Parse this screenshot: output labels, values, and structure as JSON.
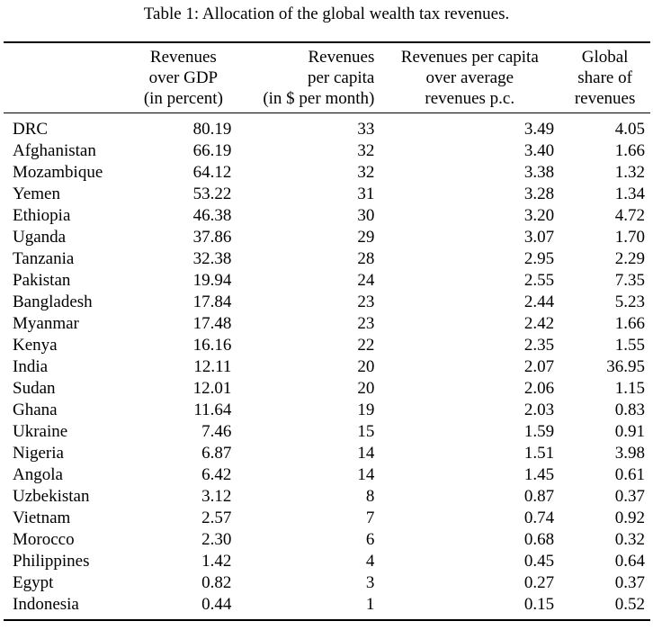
{
  "caption": "Table 1: Allocation of the global wealth tax revenues.",
  "headers": [
    "",
    "Revenues\nover GDP\n(in percent)",
    "Revenues\nper capita\n(in $ per month)",
    "Revenues per capita\nover average\nrevenues p.c.",
    "Global\nshare of\nrevenues"
  ],
  "rows": [
    [
      "DRC",
      "80.19",
      "33",
      "3.49",
      "4.05"
    ],
    [
      "Afghanistan",
      "66.19",
      "32",
      "3.40",
      "1.66"
    ],
    [
      "Mozambique",
      "64.12",
      "32",
      "3.38",
      "1.32"
    ],
    [
      "Yemen",
      "53.22",
      "31",
      "3.28",
      "1.34"
    ],
    [
      "Ethiopia",
      "46.38",
      "30",
      "3.20",
      "4.72"
    ],
    [
      "Uganda",
      "37.86",
      "29",
      "3.07",
      "1.70"
    ],
    [
      "Tanzania",
      "32.38",
      "28",
      "2.95",
      "2.29"
    ],
    [
      "Pakistan",
      "19.94",
      "24",
      "2.55",
      "7.35"
    ],
    [
      "Bangladesh",
      "17.84",
      "23",
      "2.44",
      "5.23"
    ],
    [
      "Myanmar",
      "17.48",
      "23",
      "2.42",
      "1.66"
    ],
    [
      "Kenya",
      "16.16",
      "22",
      "2.35",
      "1.55"
    ],
    [
      "India",
      "12.11",
      "20",
      "2.07",
      "36.95"
    ],
    [
      "Sudan",
      "12.01",
      "20",
      "2.06",
      "1.15"
    ],
    [
      "Ghana",
      "11.64",
      "19",
      "2.03",
      "0.83"
    ],
    [
      "Ukraine",
      "7.46",
      "15",
      "1.59",
      "0.91"
    ],
    [
      "Nigeria",
      "6.87",
      "14",
      "1.51",
      "3.98"
    ],
    [
      "Angola",
      "6.42",
      "14",
      "1.45",
      "0.61"
    ],
    [
      "Uzbekistan",
      "3.12",
      "8",
      "0.87",
      "0.37"
    ],
    [
      "Vietnam",
      "2.57",
      "7",
      "0.74",
      "0.92"
    ],
    [
      "Morocco",
      "2.30",
      "6",
      "0.68",
      "0.32"
    ],
    [
      "Philippines",
      "1.42",
      "4",
      "0.45",
      "0.64"
    ],
    [
      "Egypt",
      "0.82",
      "3",
      "0.27",
      "0.37"
    ],
    [
      "Indonesia",
      "0.44",
      "1",
      "0.15",
      "0.52"
    ]
  ]
}
